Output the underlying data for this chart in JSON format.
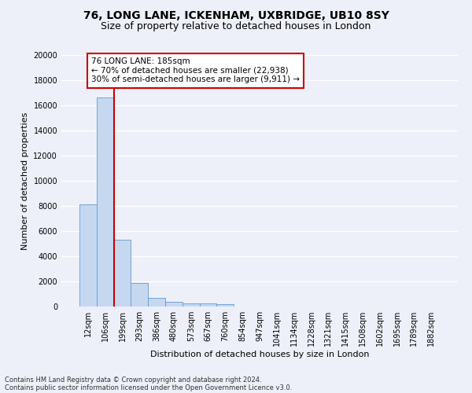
{
  "title1": "76, LONG LANE, ICKENHAM, UXBRIDGE, UB10 8SY",
  "title2": "Size of property relative to detached houses in London",
  "xlabel": "Distribution of detached houses by size in London",
  "ylabel": "Number of detached properties",
  "categories": [
    "12sqm",
    "106sqm",
    "199sqm",
    "293sqm",
    "386sqm",
    "480sqm",
    "573sqm",
    "667sqm",
    "760sqm",
    "854sqm",
    "947sqm",
    "1041sqm",
    "1134sqm",
    "1228sqm",
    "1321sqm",
    "1415sqm",
    "1508sqm",
    "1602sqm",
    "1695sqm",
    "1789sqm",
    "1882sqm"
  ],
  "values": [
    8100,
    16600,
    5300,
    1850,
    700,
    380,
    280,
    230,
    160,
    0,
    0,
    0,
    0,
    0,
    0,
    0,
    0,
    0,
    0,
    0,
    0
  ],
  "bar_color": "#c5d8f0",
  "bar_edge_color": "#6699cc",
  "vline_x": 1.5,
  "vline_color": "#cc0000",
  "annotation_text": "76 LONG LANE: 185sqm\n← 70% of detached houses are smaller (22,938)\n30% of semi-detached houses are larger (9,911) →",
  "annotation_box_color": "#ffffff",
  "annotation_box_edge_color": "#cc0000",
  "footnote1": "Contains HM Land Registry data © Crown copyright and database right 2024.",
  "footnote2": "Contains public sector information licensed under the Open Government Licence v3.0.",
  "ylim": [
    0,
    20000
  ],
  "yticks": [
    0,
    2000,
    4000,
    6000,
    8000,
    10000,
    12000,
    14000,
    16000,
    18000,
    20000
  ],
  "background_color": "#edf0f8",
  "plot_background_color": "#edf0f8",
  "grid_color": "#ffffff",
  "title_fontsize": 10,
  "subtitle_fontsize": 9,
  "tick_fontsize": 7,
  "ylabel_fontsize": 8,
  "xlabel_fontsize": 8,
  "annotation_fontsize": 7.5,
  "footnote_fontsize": 6
}
